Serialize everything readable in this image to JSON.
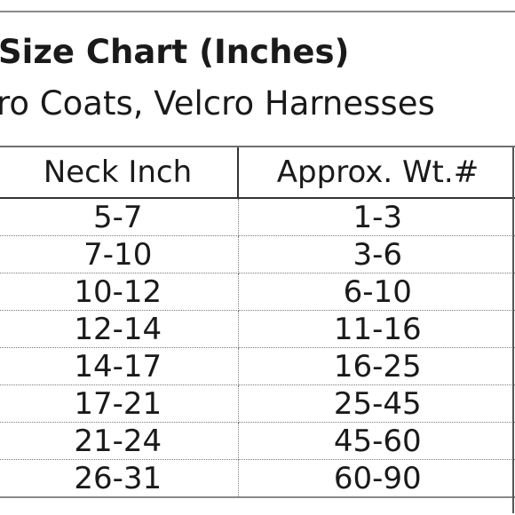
{
  "title": "Size Chart (Inches)",
  "subtitle": "ro Coats, Velcro Harnesses",
  "table": {
    "headers": {
      "neck": "Neck Inch",
      "weight": "Approx. Wt.#"
    },
    "rows": [
      {
        "neck": "5-7",
        "weight": "1-3"
      },
      {
        "neck": "7-10",
        "weight": "3-6"
      },
      {
        "neck": "10-12",
        "weight": "6-10"
      },
      {
        "neck": "12-14",
        "weight": "11-16"
      },
      {
        "neck": "14-17",
        "weight": "16-25"
      },
      {
        "neck": "17-21",
        "weight": "25-45"
      },
      {
        "neck": "21-24",
        "weight": "45-60"
      },
      {
        "neck": "26-31",
        "weight": "60-90"
      }
    ]
  }
}
